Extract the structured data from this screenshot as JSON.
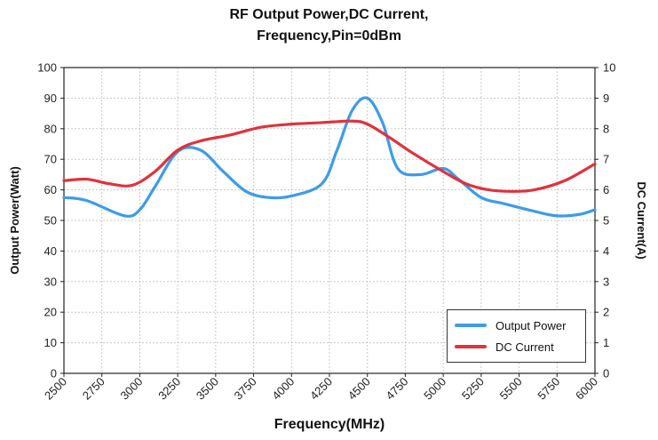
{
  "chart_data": {
    "type": "line",
    "title_line1": "RF Output Power,DC Current,",
    "title_line2": "Frequency,Pin=0dBm",
    "xlabel": "Frequency(MHz)",
    "ylabel_left": "Output Power(Watt)",
    "ylabel_right": "DC Current(A)",
    "xlim": [
      2500,
      6000
    ],
    "ylim_left": [
      0,
      100
    ],
    "ylim_right": [
      0,
      10
    ],
    "x_ticks": [
      2500,
      2750,
      3000,
      3250,
      3500,
      3750,
      4000,
      4250,
      4500,
      4750,
      5000,
      5250,
      5500,
      5750,
      6000
    ],
    "x_tick_labels": [
      "2500",
      "2750",
      "3000",
      "3250",
      "3500",
      "3750",
      "4000",
      "4250",
      "4500",
      "4750",
      "5000",
      "5250",
      "5500",
      "5750",
      "6000"
    ],
    "y_left_ticks": [
      0,
      10,
      20,
      30,
      40,
      50,
      60,
      70,
      80,
      90,
      100
    ],
    "y_right_ticks": [
      0,
      1,
      2,
      3,
      4,
      5,
      6,
      7,
      8,
      9,
      10
    ],
    "grid": true,
    "legend_position": "bottom-right",
    "series": [
      {
        "name": "Output Power",
        "axis": "left",
        "color": "#3d9be9",
        "x": [
          2500,
          2650,
          2900,
          3000,
          3100,
          3250,
          3400,
          3550,
          3700,
          3850,
          4000,
          4200,
          4300,
          4400,
          4500,
          4600,
          4700,
          4850,
          5000,
          5100,
          5250,
          5400,
          5600,
          5750,
          5900,
          6000
        ],
        "y": [
          57.5,
          56.5,
          51.5,
          53.5,
          61,
          72.5,
          73,
          66,
          59.5,
          57.5,
          58,
          62,
          73,
          86,
          90,
          82,
          67,
          65,
          67,
          63.5,
          57.5,
          55.5,
          53,
          51.5,
          52,
          53.5
        ]
      },
      {
        "name": "DC Current",
        "axis": "right",
        "color": "#e0323c",
        "x": [
          2500,
          2650,
          2800,
          2950,
          3100,
          3250,
          3400,
          3600,
          3800,
          4000,
          4200,
          4400,
          4500,
          4650,
          4800,
          5000,
          5150,
          5300,
          5450,
          5600,
          5800,
          6000
        ],
        "y": [
          6.3,
          6.35,
          6.2,
          6.15,
          6.6,
          7.3,
          7.6,
          7.8,
          8.05,
          8.15,
          8.2,
          8.25,
          8.15,
          7.7,
          7.2,
          6.6,
          6.2,
          6.0,
          5.95,
          6.0,
          6.3,
          6.85
        ]
      }
    ]
  }
}
